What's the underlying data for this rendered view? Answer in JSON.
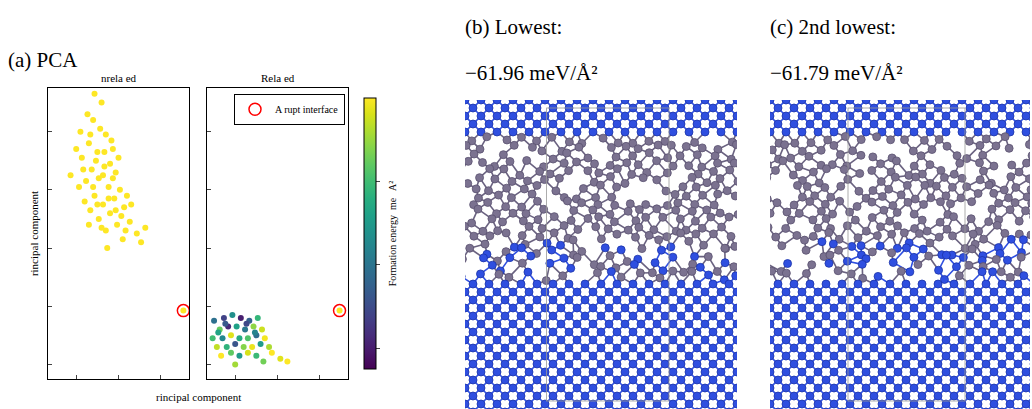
{
  "panel_label": "(a) PCA",
  "x_label": "rincipal component",
  "y_label": "rincipal component",
  "colorbar": {
    "label": "Formation energy  me   A²",
    "range": [
      -62.5,
      -56
    ],
    "ticks": [
      -62,
      -60,
      -58
    ]
  },
  "chart_data": [
    {
      "type": "scatter",
      "title": "nrela ed",
      "xlim": [
        0,
        10
      ],
      "ylim": [
        0,
        10
      ],
      "xticks": [
        2,
        5,
        8
      ],
      "yticks": [
        0.5,
        2.5,
        4.5,
        6.5,
        8.5
      ],
      "tick_labels": false,
      "series": [
        {
          "color": "#fde725",
          "marker": "circle",
          "x": [
            3.2,
            3.8,
            2.9,
            4.1,
            3.5,
            4.6,
            2.4,
            3.1,
            4.0,
            4.8,
            3.6,
            2.7,
            4.3,
            5.1,
            3.3,
            4.7,
            2.2,
            3.9,
            5.4,
            4.4,
            3.0,
            5.8,
            4.9,
            3.6,
            6.3,
            4.1,
            5.3,
            2.6,
            3.4,
            4.5,
            2.0,
            1.6,
            5.9,
            6.6,
            4.2,
            3.7,
            2.8,
            5.0,
            3.9,
            4.6,
            2.5,
            3.2,
            5.6,
            4.3,
            3.5,
            4.8,
            2.9,
            5.2,
            3.8,
            4.0,
            3.0,
            4.4,
            2.3,
            3.3,
            6.9,
            5.5,
            9.6
          ],
          "y": [
            8.9,
            9.5,
            8.1,
            8.4,
            7.8,
            7.9,
            7.6,
            7.2,
            7.3,
            7.1,
            6.9,
            6.8,
            6.6,
            6.5,
            6.3,
            6.2,
            6.6,
            6.0,
            5.9,
            5.7,
            5.8,
            5.4,
            5.3,
            5.5,
            5.0,
            5.1,
            4.8,
            6.1,
            7.5,
            8.2,
            7.9,
            7.0,
            6.0,
            4.7,
            4.5,
            8.6,
            9.1,
            7.6,
            7.0,
            6.9,
            7.2,
            6.6,
            6.3,
            6.2,
            6.0,
            5.8,
            5.3,
            5.6,
            5.2,
            7.8,
            8.4,
            7.4,
            8.5,
            9.8,
            5.2,
            5.1,
            2.35
          ]
        },
        {
          "name": "A rupt interface",
          "color": "#ff0000",
          "marker": "circle-open",
          "x": [
            9.6
          ],
          "y": [
            2.35
          ]
        }
      ]
    },
    {
      "type": "scatter",
      "title": "Rela ed",
      "xlim": [
        0,
        10
      ],
      "ylim": [
        0,
        10
      ],
      "xticks": [
        2,
        5,
        8
      ],
      "yticks": [
        0.5,
        2.5,
        4.5,
        6.5,
        8.5
      ],
      "tick_labels": false,
      "legend": "upper right",
      "series": [
        {
          "marker": "circle",
          "x": [
            0.5,
            1.2,
            1.8,
            2.4,
            3.0,
            3.6,
            0.9,
            1.5,
            2.1,
            2.7,
            3.3,
            3.9,
            0.4,
            1.1,
            1.7,
            2.3,
            2.9,
            3.5,
            4.1,
            0.7,
            1.4,
            2.0,
            2.6,
            3.2,
            3.8,
            4.4,
            1.0,
            1.7,
            2.3,
            2.9,
            3.5,
            4.6,
            5.2,
            5.7,
            2.0,
            4.0,
            1.3,
            2.8,
            3.4,
            0.8,
            9.4
          ],
          "y": [
            2.0,
            2.1,
            2.2,
            2.1,
            2.0,
            2.1,
            1.7,
            1.8,
            1.8,
            1.7,
            1.8,
            1.7,
            1.4,
            1.4,
            1.5,
            1.4,
            1.4,
            1.5,
            1.4,
            1.1,
            1.1,
            1.2,
            1.1,
            1.1,
            1.2,
            1.1,
            0.8,
            0.9,
            0.8,
            0.9,
            0.8,
            0.9,
            0.7,
            0.6,
            0.5,
            0.6,
            1.9,
            1.9,
            1.6,
            1.6,
            2.35
          ],
          "energy": [
            -60.1,
            -61.2,
            -59.3,
            -61.96,
            -60.5,
            -58.2,
            -57.5,
            -61.79,
            -58.8,
            -59.9,
            -57.1,
            -56.5,
            -58.0,
            -59.5,
            -56.3,
            -58.5,
            -57.8,
            -60.2,
            -56.1,
            -56.6,
            -58.3,
            -60.8,
            -57.2,
            -56.2,
            -58.9,
            -56.8,
            -56.0,
            -57.6,
            -59.0,
            -56.4,
            -58.1,
            -56.0,
            -56.3,
            -56.0,
            -56.9,
            -57.4,
            -60.7,
            -61.1,
            -59.6,
            -58.7,
            -56.0
          ]
        },
        {
          "name": "A rupt interface",
          "color": "#ff0000",
          "marker": "circle-open",
          "x": [
            9.4
          ],
          "y": [
            2.35
          ]
        }
      ]
    }
  ],
  "structures": [
    {
      "label": "(b) Lowest:",
      "caption": "−61.96 meV/Å²"
    },
    {
      "label": "(c) 2nd lowest:",
      "caption": "−61.79 meV/Å²"
    }
  ]
}
